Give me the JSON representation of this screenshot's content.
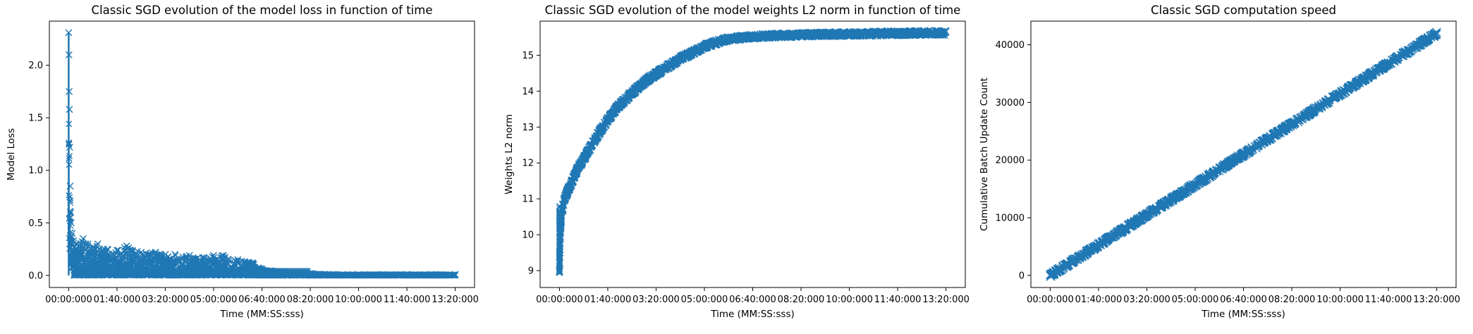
{
  "chart_data": [
    {
      "type": "line",
      "title": "Classic SGD evolution of the model loss in function of time",
      "xlabel": "Time (MM:SS:sss)",
      "ylabel": "Model Loss",
      "x_tick_labels": [
        "00:00:000",
        "01:40:000",
        "03:20:000",
        "05:00:000",
        "06:40:000",
        "08:20:000",
        "10:00:000",
        "11:40:000",
        "13:20:000"
      ],
      "x_tick_seconds": [
        0,
        100,
        200,
        300,
        400,
        500,
        600,
        700,
        800
      ],
      "y_tick_labels": [
        "0.0",
        "0.5",
        "1.0",
        "1.5",
        "2.0"
      ],
      "y_tick_values": [
        0,
        0.5,
        1.0,
        1.5,
        2.0
      ],
      "xlim": [
        -40,
        840
      ],
      "ylim": [
        -0.115,
        2.42
      ],
      "marker": "x",
      "color": "#1f77b4",
      "series": [
        {
          "x": [
            0,
            0.5,
            1,
            1.5,
            2,
            3,
            4,
            5,
            7,
            10,
            15,
            20,
            30,
            40,
            50,
            60,
            80,
            100,
            120,
            150,
            180,
            200,
            220,
            250,
            280,
            300,
            320,
            350,
            380,
            400,
            450,
            500,
            550,
            600,
            650,
            700,
            750,
            800
          ],
          "y": [
            2.31,
            2.1,
            1.75,
            1.58,
            1.22,
            0.85,
            0.6,
            0.5,
            0.4,
            0.33,
            0.3,
            0.28,
            0.35,
            0.3,
            0.27,
            0.3,
            0.25,
            0.24,
            0.28,
            0.22,
            0.22,
            0.2,
            0.2,
            0.19,
            0.17,
            0.19,
            0.19,
            0.15,
            0.12,
            0.06,
            0.03,
            0.02,
            0.01,
            0.01,
            0.01,
            0.01,
            0.01,
            0.01
          ]
        }
      ]
    },
    {
      "type": "line",
      "title": "Classic SGD evolution of the model weights L2 norm in function of time",
      "xlabel": "Time (MM:SS:sss)",
      "ylabel": "Weights L2 norm",
      "x_tick_labels": [
        "00:00:000",
        "01:40:000",
        "03:20:000",
        "05:00:000",
        "06:40:000",
        "08:20:000",
        "10:00:000",
        "11:40:000",
        "13:20:000"
      ],
      "x_tick_seconds": [
        0,
        100,
        200,
        300,
        400,
        500,
        600,
        700,
        800
      ],
      "y_tick_labels": [
        "9",
        "10",
        "11",
        "12",
        "13",
        "14",
        "15"
      ],
      "y_tick_values": [
        9,
        10,
        11,
        12,
        13,
        14,
        15
      ],
      "xlim": [
        -40,
        840
      ],
      "ylim": [
        8.53,
        15.95
      ],
      "marker": "x",
      "color": "#1f77b4",
      "series": [
        {
          "x": [
            0,
            2,
            5,
            10,
            20,
            30,
            40,
            50,
            60,
            80,
            100,
            120,
            150,
            180,
            200,
            220,
            250,
            280,
            300,
            330,
            350,
            380,
            400,
            450,
            500,
            550,
            600,
            650,
            700,
            750,
            800
          ],
          "y": [
            8.9,
            10.2,
            10.6,
            11.0,
            11.3,
            11.6,
            11.9,
            12.1,
            12.35,
            12.8,
            13.2,
            13.55,
            13.95,
            14.3,
            14.48,
            14.65,
            14.9,
            15.1,
            15.25,
            15.38,
            15.45,
            15.5,
            15.52,
            15.55,
            15.57,
            15.58,
            15.59,
            15.6,
            15.61,
            15.62,
            15.62
          ]
        }
      ]
    },
    {
      "type": "line",
      "title": "Classic SGD computation speed",
      "xlabel": "Time (MM:SS:sss)",
      "ylabel": "Cumulative Batch Update Count",
      "x_tick_labels": [
        "00:00:000",
        "01:40:000",
        "03:20:000",
        "05:00:000",
        "06:40:000",
        "08:20:000",
        "10:00:000",
        "11:40:000",
        "13:20:000"
      ],
      "x_tick_seconds": [
        0,
        100,
        200,
        300,
        400,
        500,
        600,
        700,
        800
      ],
      "y_tick_labels": [
        "0",
        "10000",
        "20000",
        "30000",
        "40000"
      ],
      "y_tick_values": [
        0,
        10000,
        20000,
        30000,
        40000
      ],
      "xlim": [
        -40,
        840
      ],
      "ylim": [
        -2100,
        44100
      ],
      "marker": "x",
      "color": "#1f77b4",
      "series": [
        {
          "x": [
            0,
            800
          ],
          "y": [
            0,
            42000
          ]
        }
      ]
    }
  ]
}
